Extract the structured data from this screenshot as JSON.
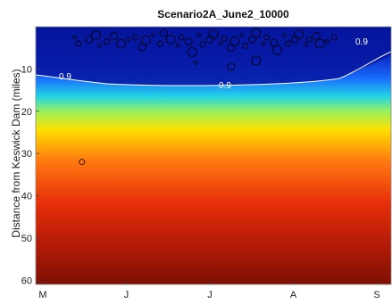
{
  "chart_data": {
    "type": "heatmap",
    "title": "Scenario2A_June2_10000",
    "xlabel": "",
    "ylabel": "Distance from Keswick Dam (miles)",
    "x_ticks": [
      "M",
      "J",
      "J",
      "A",
      "S"
    ],
    "y_ticks": [
      10,
      20,
      30,
      40,
      50,
      60
    ],
    "ylim": [
      0,
      61
    ],
    "y_reversed": true,
    "contour": {
      "level_label": "0.9",
      "label_positions": [
        "left",
        "center",
        "right"
      ]
    },
    "field_colors": {
      "low": "#061f9e",
      "mid": "#ffe000",
      "high": "#8a1204"
    },
    "scatter": [
      {
        "x": 0.11,
        "y": 2.5
      },
      {
        "x": 0.12,
        "y": 4
      },
      {
        "x": 0.15,
        "y": 3
      },
      {
        "x": 0.17,
        "y": 2
      },
      {
        "x": 0.18,
        "y": 4.5
      },
      {
        "x": 0.2,
        "y": 3.5
      },
      {
        "x": 0.22,
        "y": 2.2
      },
      {
        "x": 0.24,
        "y": 4
      },
      {
        "x": 0.26,
        "y": 3
      },
      {
        "x": 0.28,
        "y": 2.5
      },
      {
        "x": 0.3,
        "y": 4.8
      },
      {
        "x": 0.31,
        "y": 3.2
      },
      {
        "x": 0.33,
        "y": 2
      },
      {
        "x": 0.35,
        "y": 4
      },
      {
        "x": 0.36,
        "y": 1.5
      },
      {
        "x": 0.38,
        "y": 3
      },
      {
        "x": 0.4,
        "y": 4.5
      },
      {
        "x": 0.41,
        "y": 2.5
      },
      {
        "x": 0.43,
        "y": 3.5
      },
      {
        "x": 0.44,
        "y": 6
      },
      {
        "x": 0.46,
        "y": 2
      },
      {
        "x": 0.47,
        "y": 4.2
      },
      {
        "x": 0.49,
        "y": 3
      },
      {
        "x": 0.5,
        "y": 1.8
      },
      {
        "x": 0.52,
        "y": 4
      },
      {
        "x": 0.53,
        "y": 2.8
      },
      {
        "x": 0.55,
        "y": 5
      },
      {
        "x": 0.56,
        "y": 3.5
      },
      {
        "x": 0.58,
        "y": 2
      },
      {
        "x": 0.59,
        "y": 4.5
      },
      {
        "x": 0.61,
        "y": 3
      },
      {
        "x": 0.62,
        "y": 1.5
      },
      {
        "x": 0.64,
        "y": 4
      },
      {
        "x": 0.65,
        "y": 2.5
      },
      {
        "x": 0.67,
        "y": 3.8
      },
      {
        "x": 0.68,
        "y": 5.5
      },
      {
        "x": 0.7,
        "y": 2
      },
      {
        "x": 0.71,
        "y": 4
      },
      {
        "x": 0.73,
        "y": 3
      },
      {
        "x": 0.74,
        "y": 1.8
      },
      {
        "x": 0.76,
        "y": 4.2
      },
      {
        "x": 0.77,
        "y": 3
      },
      {
        "x": 0.79,
        "y": 2.2
      },
      {
        "x": 0.8,
        "y": 4
      },
      {
        "x": 0.82,
        "y": 3.5
      },
      {
        "x": 0.84,
        "y": 2.5
      },
      {
        "x": 0.55,
        "y": 9.5
      },
      {
        "x": 0.62,
        "y": 8
      },
      {
        "x": 0.45,
        "y": 8.5
      },
      {
        "x": 0.13,
        "y": 32
      }
    ]
  }
}
